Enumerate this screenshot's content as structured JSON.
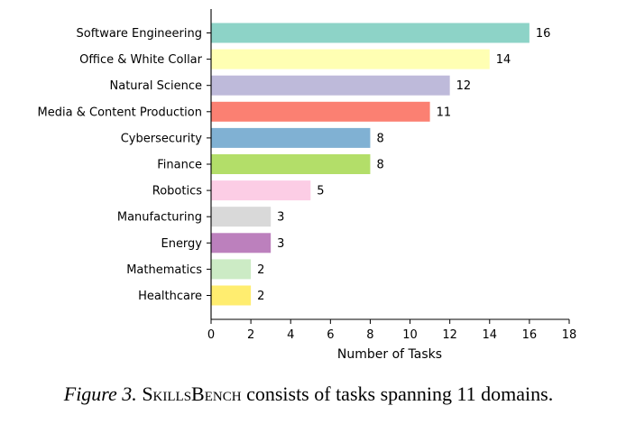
{
  "chart_data": {
    "type": "bar",
    "orientation": "horizontal",
    "categories": [
      "Software Engineering",
      "Office & White Collar",
      "Natural Science",
      "Media & Content Production",
      "Cybersecurity",
      "Finance",
      "Robotics",
      "Manufacturing",
      "Energy",
      "Mathematics",
      "Healthcare"
    ],
    "values": [
      16,
      14,
      12,
      11,
      8,
      8,
      5,
      3,
      3,
      2,
      2
    ],
    "colors": [
      "#8dd3c7",
      "#ffffb3",
      "#bebada",
      "#fb8072",
      "#80b1d3",
      "#b3de69",
      "#fccde5",
      "#d9d9d9",
      "#bc80bd",
      "#ccebc5",
      "#ffed6f"
    ],
    "xlabel": "Number of Tasks",
    "ylabel": "",
    "xlim": [
      0,
      18
    ],
    "xticks": [
      0,
      2,
      4,
      6,
      8,
      10,
      12,
      14,
      16,
      18
    ],
    "grid": false
  },
  "caption": {
    "figure_label": "Figure 3.",
    "name": "SkillsBench",
    "text": " consists of tasks spanning 11 domains."
  }
}
